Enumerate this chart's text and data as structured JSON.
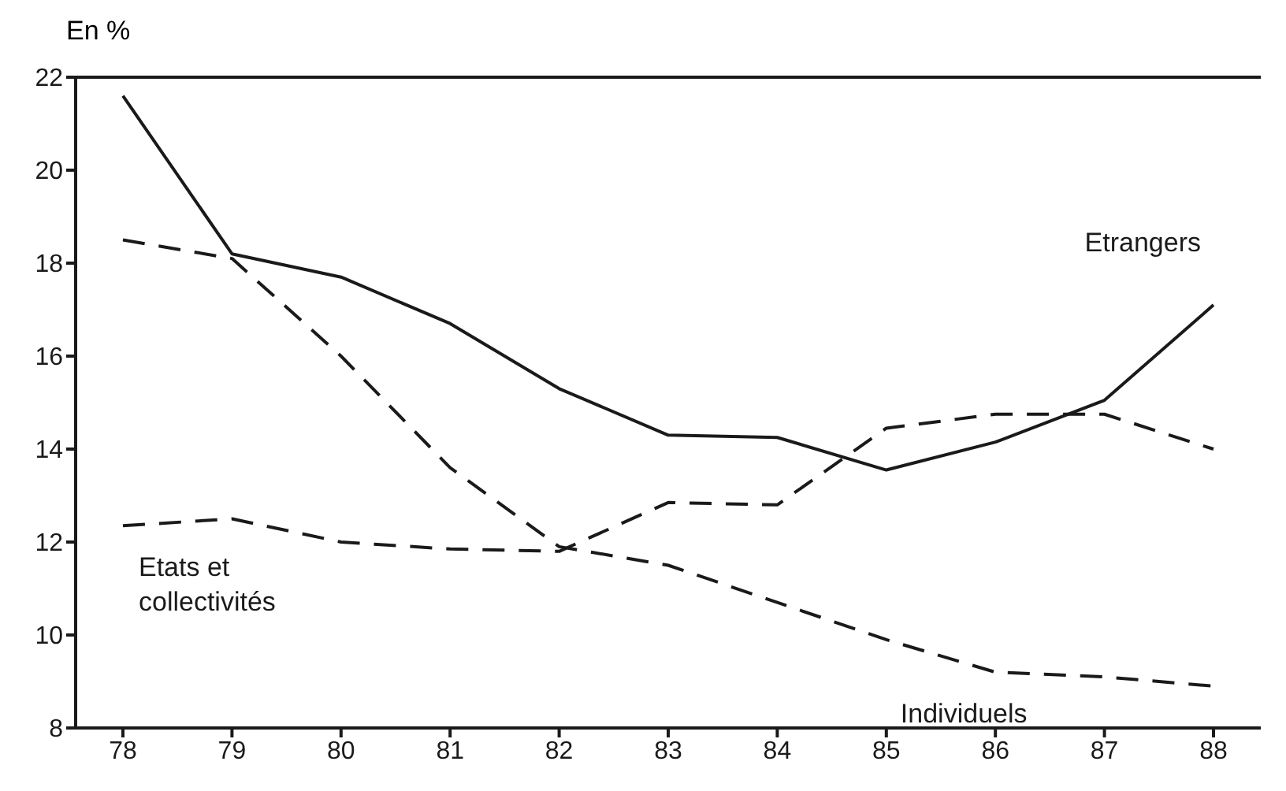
{
  "chart_data": {
    "type": "line",
    "ylabel": "En %",
    "categories": [
      "78",
      "79",
      "80",
      "81",
      "82",
      "83",
      "84",
      "85",
      "86",
      "87",
      "88"
    ],
    "series": [
      {
        "name": "Etrangers",
        "color": "#1a1a1a",
        "line_style": "solid",
        "values": [
          21.6,
          18.2,
          17.7,
          16.7,
          15.3,
          14.3,
          14.25,
          13.55,
          14.15,
          15.05,
          17.1
        ]
      },
      {
        "name": "Individuels",
        "color": "#1a1a1a",
        "line_style": "dashed",
        "values": [
          18.5,
          18.1,
          16.0,
          13.6,
          11.9,
          11.5,
          10.7,
          9.9,
          9.2,
          9.1,
          8.9
        ]
      },
      {
        "name": "Etats et collectivités",
        "color": "#1a1a1a",
        "line_style": "dashed",
        "values": [
          12.35,
          12.5,
          12.0,
          11.85,
          11.8,
          12.85,
          12.8,
          14.45,
          14.75,
          14.75,
          14.0
        ]
      }
    ],
    "ylim": [
      8,
      22
    ],
    "yticks": [
      8,
      10,
      12,
      14,
      16,
      18,
      20,
      22
    ],
    "grid": false,
    "legend": false,
    "marker": "none"
  }
}
